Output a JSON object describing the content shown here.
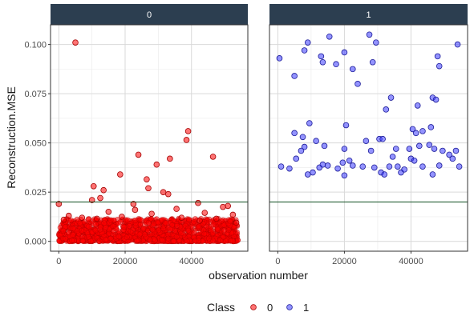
{
  "chart_data": {
    "type": "scatter",
    "xlabel": "observation number",
    "ylabel": "Reconstruction.MSE",
    "xlim": [
      -2500,
      57000
    ],
    "ylim": [
      -0.005,
      0.11
    ],
    "x_ticks": [
      0,
      20000,
      40000
    ],
    "x_tick_labels": [
      "0",
      "20000",
      "40000"
    ],
    "y_ticks": [
      0.0,
      0.025,
      0.05,
      0.075,
      0.1
    ],
    "y_tick_labels": [
      "0.000",
      "0.025",
      "0.050",
      "0.075",
      "0.100"
    ],
    "threshold": 0.02,
    "grid": true,
    "legend_title": "Class",
    "legend_position": "bottom",
    "colors": {
      "class0_fill": "#ff0000",
      "class0_stroke": "#a30000",
      "class1_fill": "#3b3bff",
      "class1_stroke": "#1c1c99",
      "threshold_line": "#0e4d1f",
      "strip_bg": "#2c3e50",
      "panel_border": "#333333",
      "grid": "#d9d9d9"
    },
    "series": [
      {
        "name": "0",
        "points": [
          [
            5000,
            0.101
          ],
          [
            39000,
            0.056
          ],
          [
            38500,
            0.0515
          ],
          [
            24000,
            0.044
          ],
          [
            46500,
            0.043
          ],
          [
            33500,
            0.042
          ],
          [
            29500,
            0.039
          ],
          [
            26500,
            0.0315
          ],
          [
            18500,
            0.034
          ],
          [
            27000,
            0.027
          ],
          [
            31500,
            0.025
          ],
          [
            13500,
            0.026
          ],
          [
            10500,
            0.028
          ],
          [
            33000,
            0.024
          ],
          [
            12500,
            0.022
          ],
          [
            10000,
            0.021
          ],
          [
            22500,
            0.019
          ],
          [
            42000,
            0.0195
          ],
          [
            51000,
            0.018
          ],
          [
            0,
            0.019
          ],
          [
            3000,
            0.013
          ],
          [
            15000,
            0.015
          ],
          [
            23000,
            0.016
          ],
          [
            35500,
            0.0165
          ],
          [
            44000,
            0.0145
          ],
          [
            49500,
            0.0175
          ],
          [
            52500,
            0.0135
          ],
          [
            7000,
            0.012
          ],
          [
            19000,
            0.0125
          ],
          [
            28000,
            0.014
          ],
          [
            37000,
            0.012
          ],
          [
            47500,
            0.0115
          ],
          [
            53500,
            0.0095
          ],
          [
            1500,
            0.011
          ],
          [
            42500,
            0.0105
          ],
          [
            11500,
            0.0115
          ]
        ]
      },
      {
        "name": "1",
        "points": [
          [
            500,
            0.093
          ],
          [
            9000,
            0.101
          ],
          [
            8000,
            0.097
          ],
          [
            15500,
            0.104
          ],
          [
            27500,
            0.105
          ],
          [
            29500,
            0.101
          ],
          [
            28500,
            0.091
          ],
          [
            13000,
            0.094
          ],
          [
            13500,
            0.091
          ],
          [
            17500,
            0.09
          ],
          [
            20000,
            0.096
          ],
          [
            22500,
            0.0875
          ],
          [
            24000,
            0.08
          ],
          [
            5000,
            0.084
          ],
          [
            48000,
            0.094
          ],
          [
            48500,
            0.089
          ],
          [
            54000,
            0.1
          ],
          [
            34000,
            0.073
          ],
          [
            32500,
            0.067
          ],
          [
            46500,
            0.073
          ],
          [
            47500,
            0.072
          ],
          [
            42000,
            0.069
          ],
          [
            9500,
            0.06
          ],
          [
            20500,
            0.059
          ],
          [
            40500,
            0.057
          ],
          [
            41500,
            0.055
          ],
          [
            43500,
            0.056
          ],
          [
            46000,
            0.058
          ],
          [
            5000,
            0.055
          ],
          [
            7500,
            0.053
          ],
          [
            8000,
            0.048
          ],
          [
            11500,
            0.051
          ],
          [
            14000,
            0.0485
          ],
          [
            20000,
            0.047
          ],
          [
            26500,
            0.051
          ],
          [
            28000,
            0.046
          ],
          [
            30500,
            0.052
          ],
          [
            31500,
            0.052
          ],
          [
            35500,
            0.047
          ],
          [
            39500,
            0.047
          ],
          [
            42500,
            0.0485
          ],
          [
            45500,
            0.049
          ],
          [
            47000,
            0.047
          ],
          [
            49500,
            0.046
          ],
          [
            53500,
            0.046
          ],
          [
            1000,
            0.038
          ],
          [
            3500,
            0.037
          ],
          [
            5500,
            0.042
          ],
          [
            7000,
            0.046
          ],
          [
            9000,
            0.034
          ],
          [
            10500,
            0.035
          ],
          [
            12500,
            0.0375
          ],
          [
            13500,
            0.039
          ],
          [
            15000,
            0.0385
          ],
          [
            18000,
            0.037
          ],
          [
            19500,
            0.04
          ],
          [
            20000,
            0.0335
          ],
          [
            21500,
            0.041
          ],
          [
            22500,
            0.0385
          ],
          [
            25500,
            0.038
          ],
          [
            29000,
            0.0375
          ],
          [
            31000,
            0.035
          ],
          [
            32000,
            0.034
          ],
          [
            33500,
            0.038
          ],
          [
            34500,
            0.043
          ],
          [
            36000,
            0.038
          ],
          [
            37000,
            0.035
          ],
          [
            38000,
            0.0365
          ],
          [
            40000,
            0.042
          ],
          [
            41000,
            0.041
          ],
          [
            43500,
            0.038
          ],
          [
            46500,
            0.034
          ],
          [
            48500,
            0.0385
          ],
          [
            51500,
            0.044
          ],
          [
            52500,
            0.042
          ],
          [
            54500,
            0.038
          ]
        ]
      }
    ],
    "panels": [
      {
        "label": "0",
        "series": 0,
        "dense_band": true,
        "dense_band_range": [
          0,
          0.0115
        ]
      },
      {
        "label": "1",
        "series": 1,
        "dense_band": false
      }
    ]
  }
}
